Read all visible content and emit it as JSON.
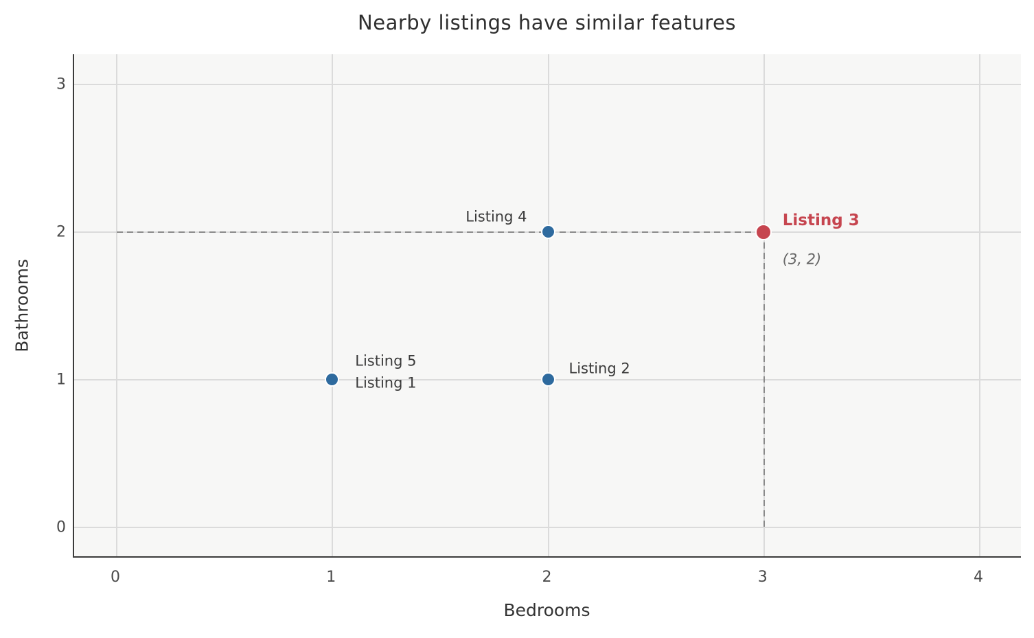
{
  "chart_data": {
    "type": "scatter",
    "title": "Nearby listings have similar features",
    "xlabel": "Bedrooms",
    "ylabel": "Bathrooms",
    "xlim": [
      -0.2,
      4.2
    ],
    "ylim": [
      -0.2,
      3.2
    ],
    "xticks": [
      0,
      1,
      2,
      3,
      4
    ],
    "yticks": [
      0,
      1,
      2,
      3
    ],
    "grid": true,
    "legend": false,
    "colors": {
      "other": "#2e6a9e",
      "highlight": "#c6454f",
      "guide": "#8a8a8a",
      "annotation_text": "#666666"
    },
    "points": [
      {
        "name": "Listing 1",
        "x": 1,
        "y": 1,
        "series": "other",
        "label_anchor": "start",
        "label_offset": [
          33,
          5
        ]
      },
      {
        "name": "Listing 2",
        "x": 2,
        "y": 1,
        "series": "other",
        "label_anchor": "start",
        "label_offset": [
          30,
          -16
        ]
      },
      {
        "name": "Listing 3",
        "x": 3,
        "y": 2,
        "series": "highlight",
        "emphasis": true,
        "label_anchor": "start",
        "label_offset": [
          27,
          -16
        ],
        "annotation": {
          "text": "(3, 2)",
          "offset": [
            27,
            40
          ]
        }
      },
      {
        "name": "Listing 4",
        "x": 2,
        "y": 2,
        "series": "other",
        "label_anchor": "end",
        "label_offset": [
          -31,
          -22
        ]
      },
      {
        "name": "Listing 5",
        "x": 1,
        "y": 1,
        "series": "other",
        "label_anchor": "start",
        "label_offset": [
          33,
          -27
        ]
      }
    ],
    "guide_lines": [
      {
        "from": [
          0,
          2
        ],
        "to": [
          3,
          2
        ]
      },
      {
        "from": [
          3,
          0
        ],
        "to": [
          3,
          2
        ]
      }
    ]
  }
}
